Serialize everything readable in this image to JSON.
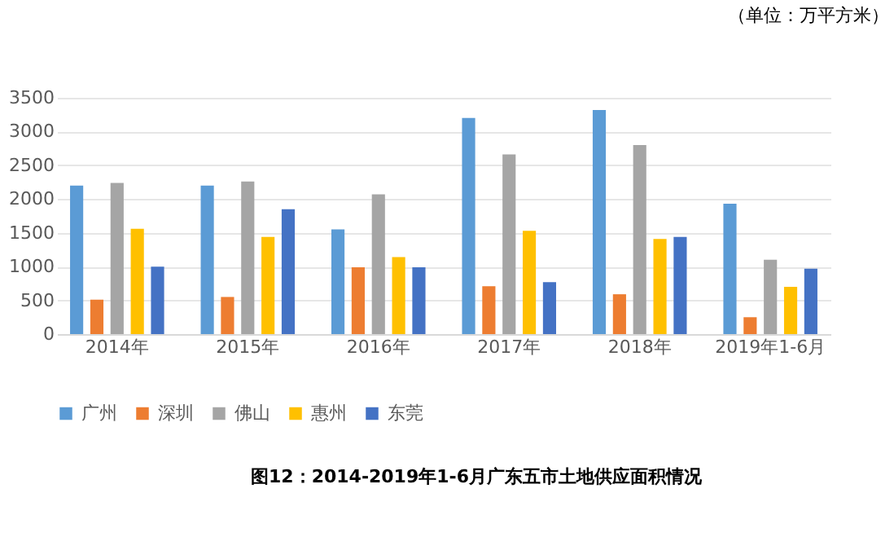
{
  "chart_data": {
    "type": "bar",
    "title": "图12：2014-2019年1-6月广东五市土地供应面积情况",
    "subtitle": "（单位：万平方米）",
    "categories": [
      "2014年",
      "2015年",
      "2016年",
      "2017年",
      "2018年",
      "2019年1-6月"
    ],
    "series": [
      {
        "name": "广州",
        "color": "#5b9bd5",
        "values": [
          2200,
          2200,
          1550,
          3200,
          3320,
          1930
        ]
      },
      {
        "name": "深圳",
        "color": "#ed7d31",
        "values": [
          510,
          550,
          990,
          710,
          590,
          250
        ]
      },
      {
        "name": "佛山",
        "color": "#a5a5a5",
        "values": [
          2240,
          2260,
          2070,
          2660,
          2800,
          1100
        ]
      },
      {
        "name": "惠州",
        "color": "#ffc000",
        "values": [
          1560,
          1440,
          1140,
          1530,
          1410,
          700
        ]
      },
      {
        "name": "东莞",
        "color": "#4472c4",
        "values": [
          1000,
          1850,
          990,
          770,
          1440,
          970
        ]
      }
    ],
    "ylim": [
      0,
      3500
    ],
    "yticks": [
      0,
      500,
      1000,
      1500,
      2000,
      2500,
      3000,
      3500
    ],
    "grid": "y",
    "legend": "bottom"
  }
}
